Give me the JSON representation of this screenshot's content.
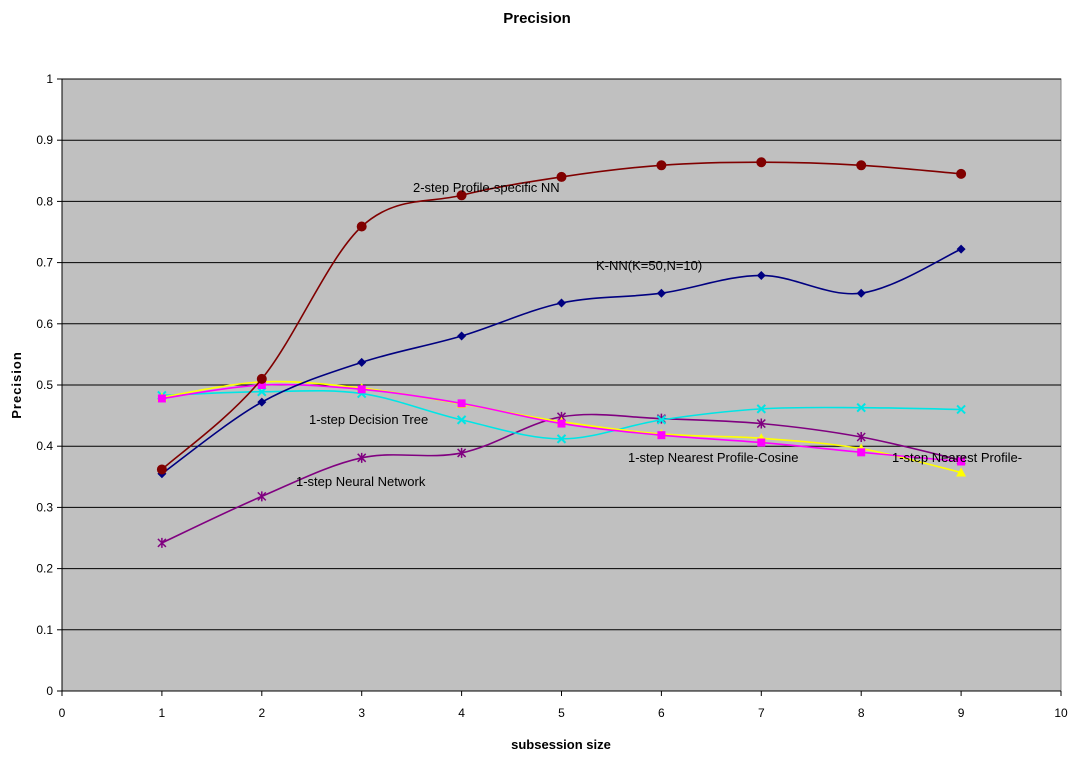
{
  "chart_data": {
    "type": "line",
    "title": "Precision",
    "xlabel": "subsession size",
    "ylabel": "Precision",
    "xlim": [
      0,
      10
    ],
    "ylim": [
      0,
      1
    ],
    "x_ticks": [
      "0",
      "1",
      "2",
      "3",
      "4",
      "5",
      "6",
      "7",
      "8",
      "9",
      "10"
    ],
    "y_ticks": [
      "0",
      "0.1",
      "0.2",
      "0.3",
      "0.4",
      "0.5",
      "0.6",
      "0.7",
      "0.8",
      "0.9",
      "1"
    ],
    "grid": "horizontal",
    "plot_background": "#c0c0c0",
    "x": [
      1,
      2,
      3,
      4,
      5,
      6,
      7,
      8,
      9
    ],
    "series": [
      {
        "name": "2-step Profile-specific NN",
        "color": "#800000",
        "marker": "circle",
        "values": [
          0.362,
          0.51,
          0.759,
          0.81,
          0.84,
          0.859,
          0.864,
          0.859,
          0.845
        ]
      },
      {
        "name": "K-NN(K=50,N=10)",
        "color": "#000080",
        "marker": "diamond",
        "values": [
          0.355,
          0.472,
          0.537,
          0.58,
          0.634,
          0.65,
          0.679,
          0.65,
          0.722
        ]
      },
      {
        "name": "1-step Decision Tree",
        "color": "#00e5e5",
        "marker": "x",
        "values": [
          0.483,
          0.489,
          0.486,
          0.443,
          0.412,
          0.443,
          0.461,
          0.463,
          0.46
        ]
      },
      {
        "name": "1-step Nearest Profile-Cosine",
        "color": "#ff00ff",
        "marker": "square",
        "values": [
          0.478,
          0.5,
          0.493,
          0.47,
          0.437,
          0.418,
          0.406,
          0.39,
          0.375
        ]
      },
      {
        "name": "1-step Nearest Profile-",
        "color": "#ffff00",
        "marker": "triangle",
        "values": [
          0.48,
          0.505,
          0.495,
          0.469,
          0.44,
          0.42,
          0.413,
          0.396,
          0.357
        ]
      },
      {
        "name": "1-step Neural Network",
        "color": "#800080",
        "marker": "star",
        "values": [
          0.242,
          0.318,
          0.381,
          0.389,
          0.448,
          0.445,
          0.437,
          0.415,
          0.377
        ]
      }
    ]
  }
}
